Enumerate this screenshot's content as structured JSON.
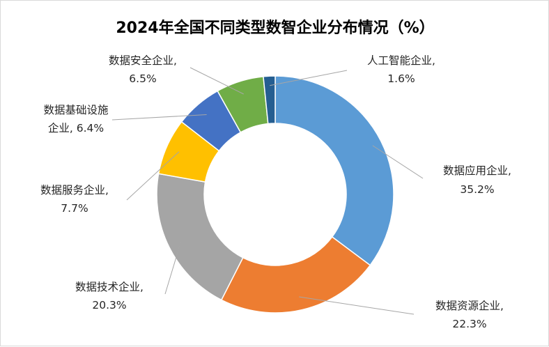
{
  "chart_data": {
    "type": "pie",
    "variant": "doughnut",
    "title": "2024年全国不同类型数智企业分布情况（%）",
    "unit": "%",
    "slices": [
      {
        "category": "数据应用企业",
        "value": 35.2,
        "value_label": "35.2%",
        "color": "#5B9BD5",
        "label_lines": [
          "数据应用企业,",
          "35.2%"
        ]
      },
      {
        "category": "数据资源企业",
        "value": 22.3,
        "value_label": "22.3%",
        "color": "#ED7D31",
        "label_lines": [
          "数据资源企业,",
          "22.3%"
        ]
      },
      {
        "category": "数据技术企业",
        "value": 20.3,
        "value_label": "20.3%",
        "color": "#A5A5A5",
        "label_lines": [
          "数据技术企业,",
          "20.3%"
        ]
      },
      {
        "category": "数据服务企业",
        "value": 7.7,
        "value_label": "7.7%",
        "color": "#FFC000",
        "label_lines": [
          "数据服务企业,",
          "7.7%"
        ]
      },
      {
        "category": "数据基础设施企业",
        "value": 6.4,
        "value_label": "6.4%",
        "color": "#4472C4",
        "label_lines": [
          "数据基础设施",
          "企业, 6.4%"
        ]
      },
      {
        "category": "数据安全企业",
        "value": 6.5,
        "value_label": "6.5%",
        "color": "#70AD47",
        "label_lines": [
          "数据安全企业,",
          "6.5%"
        ]
      },
      {
        "category": "人工智能企业",
        "value": 1.6,
        "value_label": "1.6%",
        "color": "#255E91",
        "label_lines": [
          "人工智能企业,",
          "1.6%"
        ]
      }
    ],
    "legend": "none"
  }
}
